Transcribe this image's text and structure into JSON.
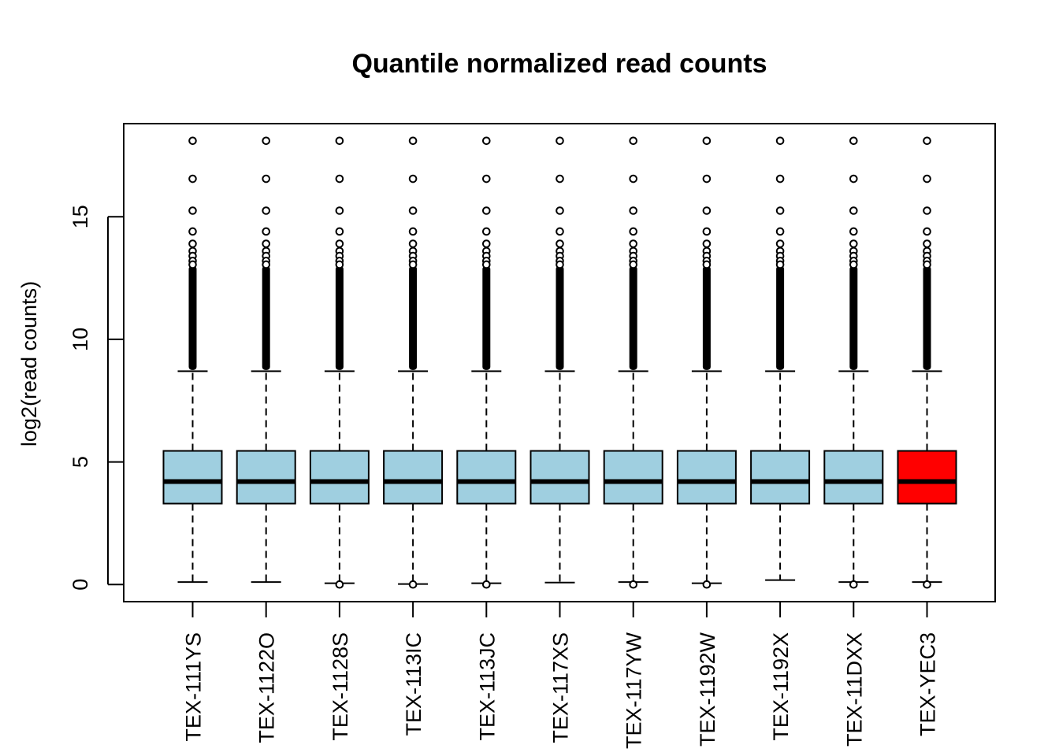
{
  "chart_data": {
    "type": "boxplot",
    "title": "Quantile normalized read counts",
    "xlabel": "",
    "ylabel": "log2(read counts)",
    "ylim": [
      -0.7,
      18.8
    ],
    "y_ticks": [
      0,
      5,
      10,
      15
    ],
    "grid": false,
    "legend": "none",
    "categories": [
      "TEX-111YS",
      "TEX-1122O",
      "TEX-1128S",
      "TEX-113IC",
      "TEX-113JC",
      "TEX-117XS",
      "TEX-117YW",
      "TEX-1192W",
      "TEX-1192X",
      "TEX-11DXX",
      "TEX-YEC3"
    ],
    "colors": {
      "default_box": "#9FCFE0",
      "highlight_box": "#FF0000",
      "outline": "#000000"
    },
    "highlight_index": 10,
    "boxes": [
      {
        "whisker_low": 0.1,
        "q1": 3.3,
        "median": 4.2,
        "q3": 5.45,
        "whisker_high": 8.7
      },
      {
        "whisker_low": 0.1,
        "q1": 3.3,
        "median": 4.2,
        "q3": 5.45,
        "whisker_high": 8.7
      },
      {
        "whisker_low": 0.05,
        "q1": 3.3,
        "median": 4.2,
        "q3": 5.45,
        "whisker_high": 8.7
      },
      {
        "whisker_low": 0.02,
        "q1": 3.3,
        "median": 4.2,
        "q3": 5.45,
        "whisker_high": 8.7
      },
      {
        "whisker_low": 0.05,
        "q1": 3.3,
        "median": 4.2,
        "q3": 5.45,
        "whisker_high": 8.7
      },
      {
        "whisker_low": 0.08,
        "q1": 3.3,
        "median": 4.2,
        "q3": 5.45,
        "whisker_high": 8.7
      },
      {
        "whisker_low": 0.1,
        "q1": 3.3,
        "median": 4.2,
        "q3": 5.45,
        "whisker_high": 8.7
      },
      {
        "whisker_low": 0.05,
        "q1": 3.3,
        "median": 4.2,
        "q3": 5.45,
        "whisker_high": 8.7
      },
      {
        "whisker_low": 0.18,
        "q1": 3.3,
        "median": 4.2,
        "q3": 5.45,
        "whisker_high": 8.7
      },
      {
        "whisker_low": 0.1,
        "q1": 3.3,
        "median": 4.2,
        "q3": 5.45,
        "whisker_high": 8.7
      },
      {
        "whisker_low": 0.1,
        "q1": 3.3,
        "median": 4.2,
        "q3": 5.45,
        "whisker_high": 8.7
      }
    ],
    "outliers_high": [
      18.1,
      16.55,
      15.25,
      14.4,
      13.9,
      13.6,
      13.4,
      13.2,
      13.05
    ],
    "outlier_dense_range": [
      8.75,
      13.0
    ],
    "low_outliers": [
      [],
      [],
      [
        0.0
      ],
      [
        0.0
      ],
      [
        0.0
      ],
      [],
      [
        0.0
      ],
      [
        0.0
      ],
      [],
      [
        0.0
      ],
      [
        0.0
      ]
    ]
  }
}
